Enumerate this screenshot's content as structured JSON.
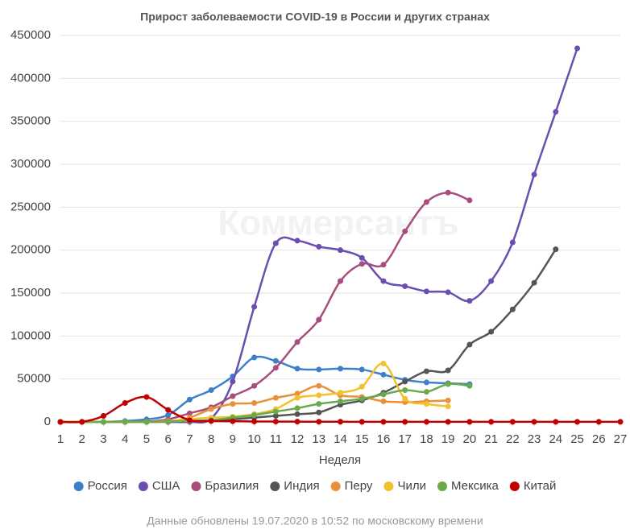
{
  "chart_data": {
    "type": "line",
    "title": "Прирост заболеваемости COVID-19 в России и других странах",
    "watermark": "Коммерсантъ",
    "x_label": "Неделя",
    "footer": "Данные обновлены 19.07.2020 в 10:52 по московскому времени",
    "x": [
      1,
      2,
      3,
      4,
      5,
      6,
      7,
      8,
      9,
      10,
      11,
      12,
      13,
      14,
      15,
      16,
      17,
      18,
      19,
      20,
      21,
      22,
      23,
      24,
      25,
      26,
      27
    ],
    "xlim": [
      1,
      27
    ],
    "xticks": [
      1,
      2,
      3,
      4,
      5,
      6,
      7,
      8,
      9,
      10,
      11,
      12,
      13,
      14,
      15,
      16,
      17,
      18,
      19,
      20,
      21,
      22,
      23,
      24,
      25,
      26,
      27
    ],
    "ylim": [
      0,
      450000
    ],
    "yticks": [
      0,
      50000,
      100000,
      150000,
      200000,
      250000,
      300000,
      350000,
      400000,
      450000
    ],
    "grid": true,
    "legend": "bottom",
    "series": [
      {
        "name": "Россия",
        "color": "#3d7fc9",
        "values": [
          0,
          0,
          0,
          1000,
          3000,
          8000,
          26000,
          37000,
          53000,
          75000,
          71000,
          62000,
          61000,
          62000,
          61000,
          55000,
          49000,
          46000,
          45000,
          44000,
          null,
          null,
          null,
          null,
          null,
          null,
          null
        ]
      },
      {
        "name": "США",
        "color": "#6a4fb0",
        "values": [
          0,
          0,
          0,
          0,
          0,
          0,
          0,
          4000,
          47000,
          134000,
          208000,
          211000,
          204000,
          200000,
          191000,
          164000,
          158000,
          152000,
          151000,
          141000,
          164000,
          209000,
          288000,
          361000,
          435000,
          null,
          null
        ]
      },
      {
        "name": "Бразилия",
        "color": "#a84c7e",
        "values": [
          0,
          0,
          0,
          0,
          500,
          3000,
          10000,
          17000,
          30000,
          42000,
          63000,
          93000,
          119000,
          164000,
          184000,
          183000,
          222000,
          256000,
          267000,
          258000,
          null,
          null,
          null,
          null,
          null,
          null,
          null
        ]
      },
      {
        "name": "Индия",
        "color": "#555555",
        "values": [
          0,
          0,
          0,
          0,
          0,
          500,
          1000,
          2000,
          3000,
          5000,
          7000,
          9000,
          11000,
          20000,
          25000,
          34000,
          47000,
          59000,
          60000,
          90000,
          105000,
          131000,
          162000,
          201000,
          null,
          null,
          null
        ]
      },
      {
        "name": "Перу",
        "color": "#e8903a",
        "values": [
          0,
          0,
          0,
          0,
          0,
          500,
          5000,
          15000,
          21000,
          22000,
          28000,
          33000,
          42000,
          31000,
          29000,
          24000,
          23000,
          24000,
          25000,
          null,
          null,
          null,
          null,
          null,
          null,
          null,
          null
        ]
      },
      {
        "name": "Чили",
        "color": "#f2c12e",
        "values": [
          0,
          0,
          0,
          0,
          0,
          1000,
          3000,
          5000,
          6000,
          9000,
          15000,
          28000,
          31000,
          34000,
          41000,
          68000,
          27000,
          21000,
          18000,
          null,
          null,
          null,
          null,
          null,
          null,
          null,
          null
        ]
      },
      {
        "name": "Мексика",
        "color": "#6aaa4b",
        "values": [
          0,
          0,
          0,
          0,
          0,
          500,
          1000,
          2000,
          5000,
          8000,
          12000,
          16000,
          21000,
          24000,
          27000,
          32000,
          37000,
          35000,
          44000,
          42000,
          null,
          null,
          null,
          null,
          null,
          null,
          null
        ]
      },
      {
        "name": "Китай",
        "color": "#c00000",
        "values": [
          0,
          100,
          7000,
          22000,
          29000,
          14000,
          2000,
          1000,
          800,
          500,
          400,
          300,
          200,
          200,
          100,
          100,
          100,
          100,
          100,
          100,
          100,
          100,
          100,
          100,
          100,
          100,
          100
        ]
      }
    ]
  }
}
